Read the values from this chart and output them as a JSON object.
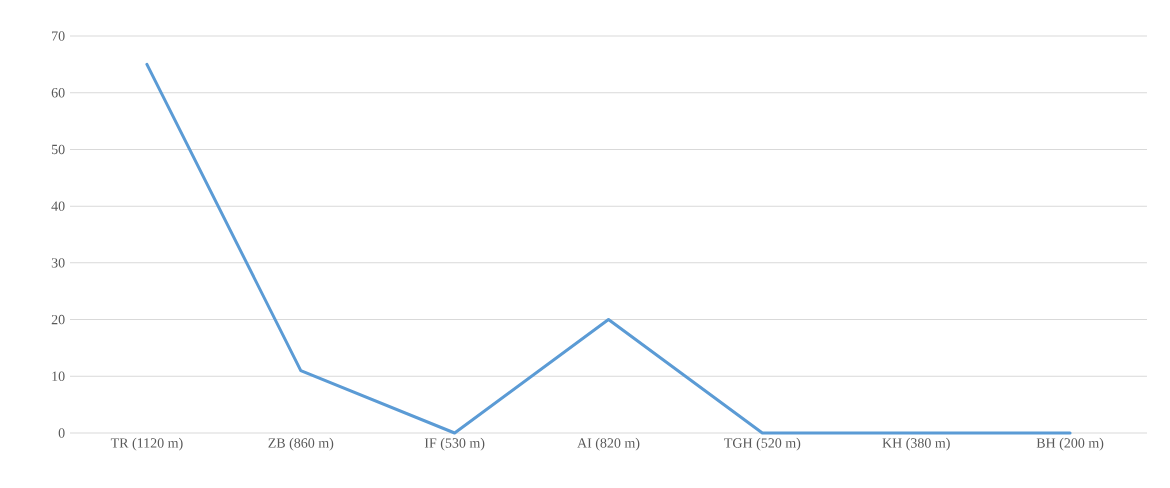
{
  "chart_data": {
    "type": "line",
    "categories": [
      "TR (1120 m)",
      "ZB (860 m)",
      "IF (530 m)",
      "AI (820 m)",
      "TGH (520 m)",
      "KH (380 m)",
      "BH (200 m)"
    ],
    "series": [
      {
        "color": "#5b9bd5",
        "values": [
          65,
          11,
          0,
          20,
          0,
          0,
          0
        ]
      }
    ],
    "ylim": [
      0,
      70
    ],
    "yticks": [
      0,
      10,
      20,
      30,
      40,
      50,
      60,
      70
    ],
    "grid": "y",
    "legend": false,
    "marker": "none",
    "line_style": "solid"
  }
}
